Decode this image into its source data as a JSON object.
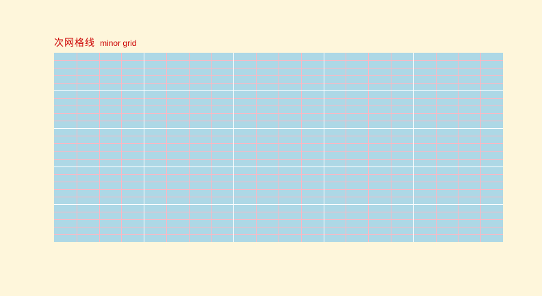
{
  "colors": {
    "page_background": "#fef6db",
    "plot_background": "#add8e6",
    "major_grid": "#ffffff",
    "minor_grid": "#ffb6c1",
    "title": "#cc0000"
  },
  "chart_data": {
    "type": "grid",
    "title_cn": "次网格线",
    "title_en": "minor grid",
    "major_grid": {
      "show": true,
      "x_divisions": 5,
      "y_divisions": 5
    },
    "minor_grid": {
      "show": true,
      "x_per_major": 4,
      "y_per_major": 5
    },
    "legend": "none",
    "axes_visible": false
  }
}
